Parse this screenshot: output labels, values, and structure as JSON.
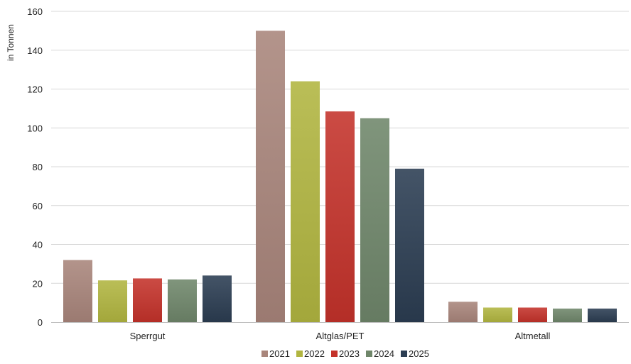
{
  "chart_data": {
    "type": "bar",
    "ylabel": "in Tonnen",
    "xlabel": "",
    "ylim": [
      0,
      160
    ],
    "yticks": [
      0,
      20,
      40,
      60,
      80,
      100,
      120,
      140,
      160
    ],
    "grid": true,
    "legend_position": "bottom",
    "categories": [
      "Sperrgut",
      "Altglas/PET",
      "Altmetall"
    ],
    "series": [
      {
        "name": "2021",
        "color": "#a9857b",
        "values": [
          32,
          150,
          10.5
        ]
      },
      {
        "name": "2022",
        "color": "#b1b540",
        "values": [
          21.5,
          124,
          7.5
        ]
      },
      {
        "name": "2023",
        "color": "#c4322a",
        "values": [
          22.5,
          108.5,
          7.5
        ]
      },
      {
        "name": "2024",
        "color": "#6f866a",
        "values": [
          22,
          105,
          7
        ]
      },
      {
        "name": "2025",
        "color": "#2b3d52",
        "values": [
          24,
          79,
          7
        ]
      }
    ]
  }
}
